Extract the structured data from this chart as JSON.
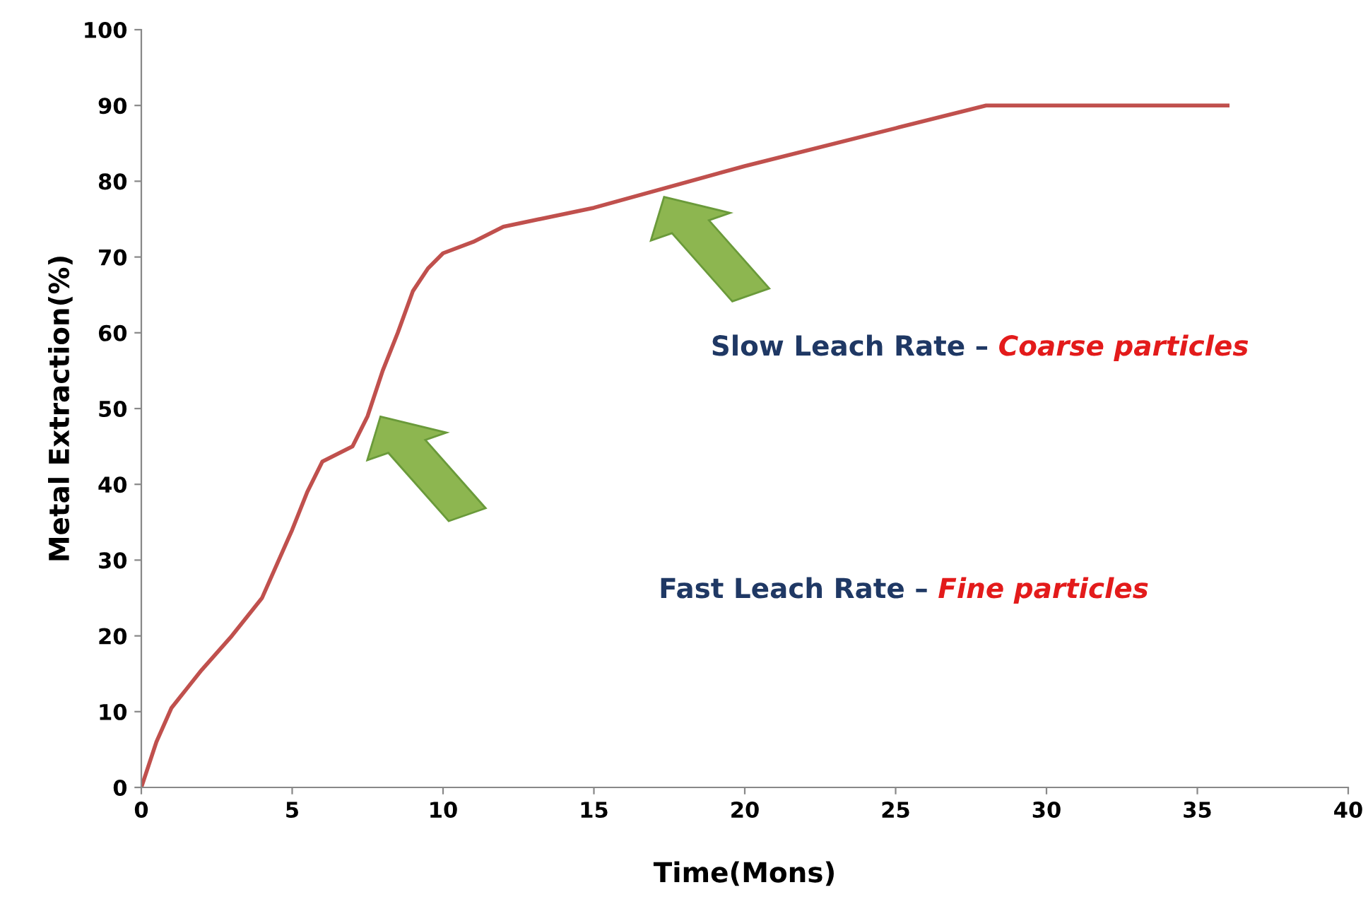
{
  "chart_data": {
    "type": "line",
    "xlabel": "Time(Mons)",
    "ylabel": "Metal Extraction(%)",
    "xlim": [
      0,
      40
    ],
    "xticks": [
      0,
      5,
      10,
      15,
      20,
      25,
      30,
      35,
      40
    ],
    "ylim": [
      0,
      100
    ],
    "yticks": [
      0,
      10,
      20,
      30,
      40,
      50,
      60,
      70,
      80,
      90,
      100
    ],
    "grid": false,
    "legend": false,
    "marker": "none",
    "line_style": "solid",
    "series": [
      {
        "color": "#c0504d",
        "x": [
          0,
          0.5,
          1,
          1.5,
          2,
          3,
          4,
          5,
          5.5,
          6,
          6.5,
          7,
          7.5,
          8,
          8.5,
          9,
          9.5,
          10,
          11,
          12,
          15,
          20,
          25,
          28,
          28.5,
          36
        ],
        "values": [
          0,
          6,
          10.5,
          13,
          15.5,
          20,
          25,
          34,
          39,
          43,
          44,
          45,
          49,
          55,
          60,
          65.5,
          68.5,
          70.5,
          72,
          74,
          76.5,
          82,
          87,
          90,
          90,
          90
        ]
      }
    ],
    "annotations": [
      "Slow Leach Rate – ",
      "Coarse particles",
      "Fast Leach Rate – ",
      "Fine particles"
    ]
  }
}
